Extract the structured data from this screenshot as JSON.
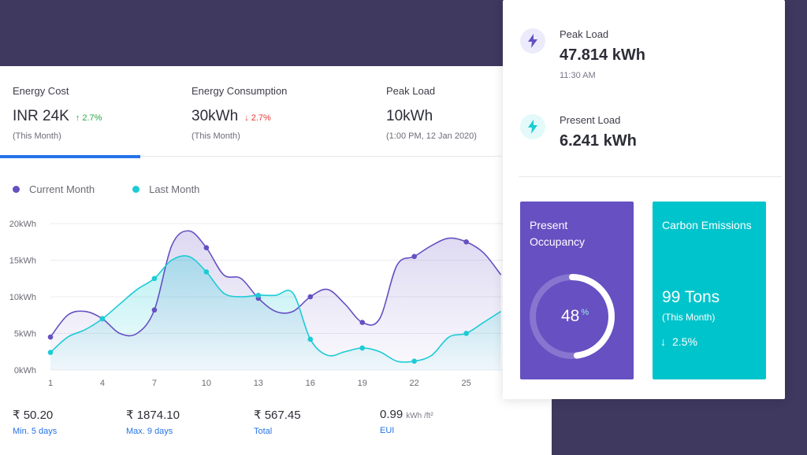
{
  "kpis": [
    {
      "title": "Energy Cost",
      "value": "INR 24K",
      "trend_symbol": "↑",
      "trend": "2.7%",
      "trend_dir": "up",
      "sub": "(This Month)"
    },
    {
      "title": "Energy Consumption",
      "value": "30kWh",
      "trend_symbol": "↓",
      "trend": "2.7%",
      "trend_dir": "down",
      "sub": "(This Month)"
    },
    {
      "title": "Peak Load",
      "value": "10kWh",
      "trend": "",
      "sub": "(1:00 PM, 12 Jan 2020)"
    }
  ],
  "legend": {
    "current": {
      "label": "Current Month",
      "color": "#6650c2"
    },
    "last": {
      "label": "Last Month",
      "color": "#1ccbd5"
    }
  },
  "chart_data": {
    "type": "area",
    "x": [
      1,
      2,
      3,
      4,
      5,
      6,
      7,
      8,
      9,
      10,
      11,
      12,
      13,
      14,
      15,
      16,
      17,
      18,
      19,
      20,
      21,
      22,
      23,
      24,
      25,
      26,
      27
    ],
    "x_ticks": [
      "1",
      "4",
      "7",
      "10",
      "13",
      "16",
      "19",
      "22",
      "25"
    ],
    "y_ticks": [
      "0kWh",
      "5kWh",
      "10kWh",
      "15kWh",
      "20kWh"
    ],
    "ylim": [
      0,
      20
    ],
    "series": [
      {
        "name": "Current Month",
        "color": "#6650c2",
        "values": [
          4.5,
          7.5,
          8,
          7,
          5,
          5,
          8.2,
          17,
          19,
          16.7,
          13,
          12.5,
          9.8,
          8,
          8,
          10,
          11,
          9,
          6.5,
          7,
          14.3,
          15.5,
          17,
          18,
          17.5,
          16,
          13
        ]
      },
      {
        "name": "Last Month",
        "color": "#1ccbd5",
        "values": [
          2.4,
          4.5,
          5.5,
          7,
          9,
          11,
          12.5,
          15,
          15.5,
          13.4,
          10.5,
          10,
          10.2,
          10.2,
          10.5,
          4.2,
          2,
          2.5,
          3,
          2.5,
          1.2,
          1.2,
          2,
          4.5,
          5,
          6.5,
          8
        ]
      }
    ],
    "marked_points": [
      1,
      4,
      7,
      10,
      13,
      16,
      19,
      22,
      25
    ]
  },
  "stats": [
    {
      "value": "₹ 50.20",
      "unit": "",
      "label": "Min. 5 days"
    },
    {
      "value": "₹ 1874.10",
      "unit": "",
      "label": "Max. 9 days"
    },
    {
      "value": "₹ 567.45",
      "unit": "",
      "label": "Total"
    },
    {
      "value": "0.99",
      "unit": "kWh /ft²",
      "label": "EUI"
    }
  ],
  "side": {
    "peak": {
      "title": "Peak Load",
      "value": "47.814 kWh",
      "sub": "11:30 AM",
      "icon": "bolt-icon",
      "color": "#6650c2"
    },
    "present": {
      "title": "Present Load",
      "value": "6.241 kWh",
      "icon": "bolt-icon",
      "color": "#1ccbd5"
    },
    "occupancy": {
      "title": "Present Occupancy",
      "value": "48",
      "unit": "%",
      "percent": 48
    },
    "carbon": {
      "title": "Carbon Emissions",
      "value": "99 Tons",
      "sub": "(This Month)",
      "trend_symbol": "↓",
      "trend": "2.5%"
    }
  }
}
